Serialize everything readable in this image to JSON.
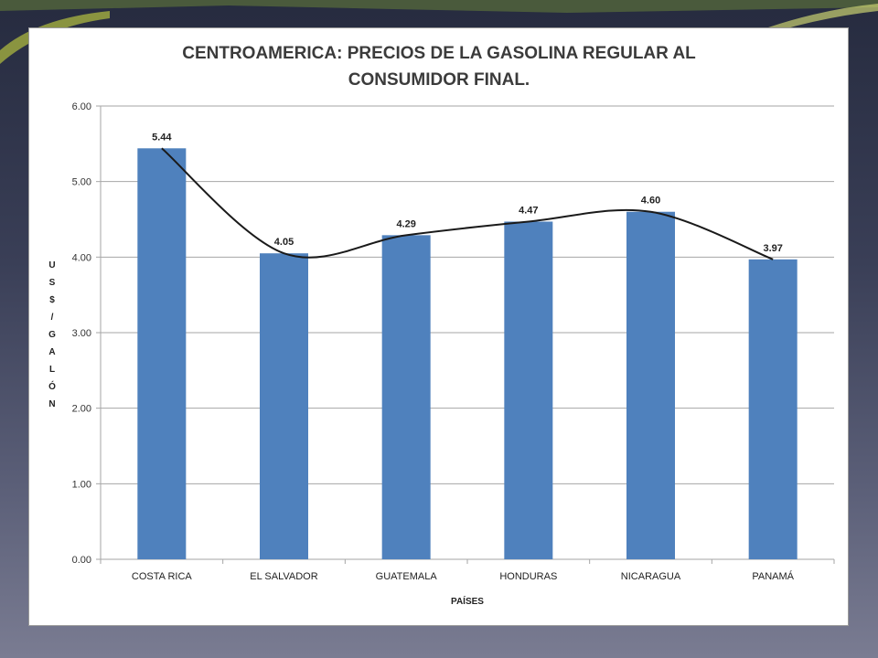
{
  "colors": {
    "bar": "#4f81bd",
    "trend_line": "#1a1a1a",
    "grid": "#a6a6a6",
    "slide_accent": "#b9c24a"
  },
  "chart_data": {
    "type": "bar",
    "title_lines": [
      "CENTROAMERICA: PRECIOS DE LA GASOLINA REGULAR AL",
      "CONSUMIDOR FINAL."
    ],
    "categories": [
      "COSTA RICA",
      "EL SALVADOR",
      "GUATEMALA",
      "HONDURAS",
      "NICARAGUA",
      "PANAMÁ"
    ],
    "values": [
      5.44,
      4.05,
      4.29,
      4.47,
      4.6,
      3.97
    ],
    "value_labels": [
      "5.44",
      "4.05",
      "4.29",
      "4.47",
      "4.60",
      "3.97"
    ],
    "xlabel": "PAÍSES",
    "ylabel_letters": [
      "U",
      "S",
      "$",
      "/",
      "G",
      "A",
      "L",
      "Ó",
      "N"
    ],
    "ylim": [
      0,
      6
    ],
    "yticks": [
      "0.00",
      "1.00",
      "2.00",
      "3.00",
      "4.00",
      "5.00",
      "6.00"
    ],
    "grid": true,
    "trendline": "smooth curve through bar tops",
    "legend": "none"
  }
}
